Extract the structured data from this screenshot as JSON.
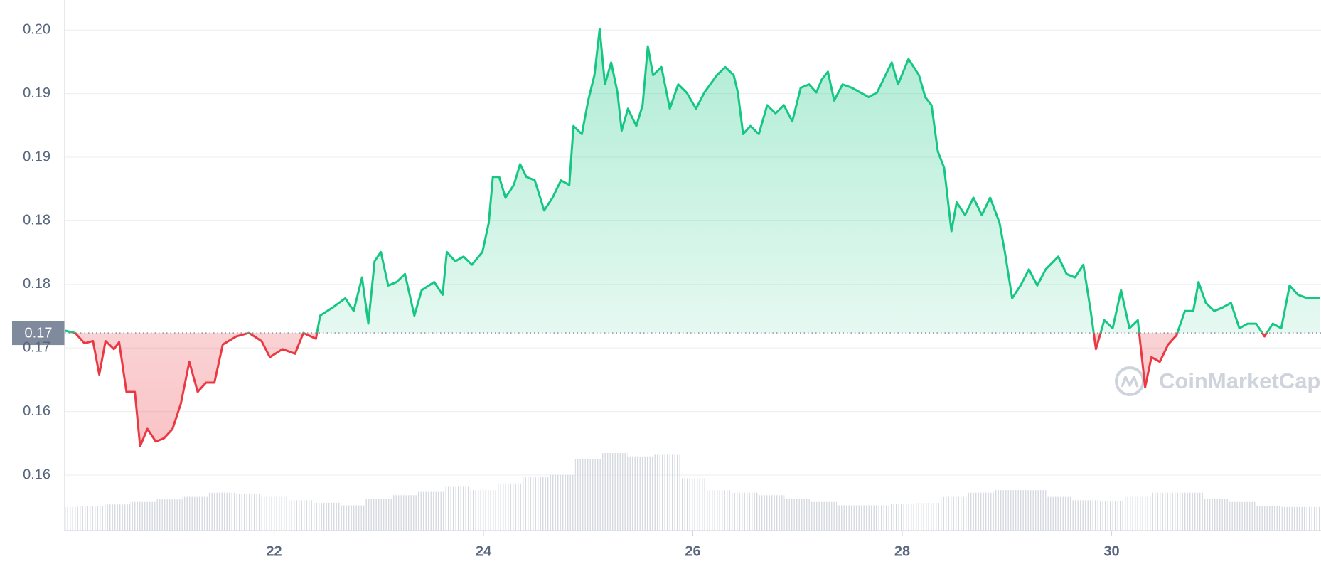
{
  "chart_data": {
    "type": "line",
    "watermark": "CoinMarketCap",
    "xlim": [
      20,
      32
    ],
    "xticks": [
      22,
      24,
      26,
      28,
      30
    ],
    "ylim": [
      0.1542,
      0.2001
    ],
    "yticks": [
      {
        "value": 0.1975,
        "label": "0.20"
      },
      {
        "value": 0.192,
        "label": "0.19"
      },
      {
        "value": 0.1865,
        "label": "0.19"
      },
      {
        "value": 0.181,
        "label": "0.18"
      },
      {
        "value": 0.1755,
        "label": "0.18"
      },
      {
        "value": 0.17,
        "label": "0.17"
      },
      {
        "value": 0.1645,
        "label": "0.16"
      },
      {
        "value": 0.159,
        "label": "0.16"
      }
    ],
    "grid": true,
    "reference_line": {
      "value": 0.1713,
      "label": "0.17"
    },
    "up_color": "#16c784",
    "down_color": "#ea3943",
    "x": [
      20.0,
      20.1,
      20.19,
      20.27,
      20.33,
      20.39,
      20.47,
      20.52,
      20.59,
      20.67,
      20.72,
      20.79,
      20.87,
      20.95,
      21.03,
      21.11,
      21.19,
      21.27,
      21.35,
      21.43,
      21.51,
      21.64,
      21.76,
      21.88,
      21.96,
      22.08,
      22.2,
      22.28,
      22.4,
      22.44,
      22.56,
      22.68,
      22.76,
      22.84,
      22.9,
      22.96,
      23.02,
      23.09,
      23.17,
      23.25,
      23.34,
      23.41,
      23.53,
      23.61,
      23.65,
      23.73,
      23.81,
      23.89,
      23.99,
      24.05,
      24.09,
      24.15,
      24.21,
      24.29,
      24.35,
      24.41,
      24.49,
      24.58,
      24.66,
      24.74,
      24.82,
      24.86,
      24.94,
      25.0,
      25.06,
      25.11,
      25.16,
      25.22,
      25.28,
      25.32,
      25.38,
      25.46,
      25.52,
      25.57,
      25.62,
      25.7,
      25.78,
      25.86,
      25.94,
      26.03,
      26.11,
      26.23,
      26.31,
      26.39,
      26.43,
      26.48,
      26.55,
      26.63,
      26.71,
      26.79,
      26.87,
      26.95,
      27.03,
      27.11,
      27.18,
      27.23,
      27.29,
      27.35,
      27.43,
      27.52,
      27.6,
      27.68,
      27.76,
      27.84,
      27.9,
      27.96,
      28.06,
      28.16,
      28.22,
      28.28,
      28.34,
      28.4,
      28.47,
      28.52,
      28.6,
      28.68,
      28.76,
      28.84,
      28.93,
      28.98,
      29.05,
      29.13,
      29.21,
      29.29,
      29.37,
      29.49,
      29.57,
      29.65,
      29.73,
      29.8,
      29.85,
      29.93,
      30.01,
      30.09,
      30.17,
      30.25,
      30.32,
      30.38,
      30.46,
      30.54,
      30.62,
      30.7,
      30.78,
      30.83,
      30.9,
      30.98,
      31.06,
      31.14,
      31.22,
      31.3,
      31.38,
      31.46,
      31.54,
      31.62,
      31.7,
      31.78,
      31.87,
      31.99
    ],
    "values": [
      0.1715,
      0.1713,
      0.1704,
      0.1706,
      0.1677,
      0.1706,
      0.1699,
      0.1705,
      0.1662,
      0.1662,
      0.1615,
      0.163,
      0.1619,
      0.1622,
      0.163,
      0.1652,
      0.1688,
      0.1662,
      0.167,
      0.167,
      0.1703,
      0.171,
      0.1713,
      0.1706,
      0.1692,
      0.1699,
      0.1695,
      0.1713,
      0.1708,
      0.1728,
      0.1735,
      0.1743,
      0.1732,
      0.1761,
      0.1721,
      0.1775,
      0.1783,
      0.1754,
      0.1757,
      0.1764,
      0.1728,
      0.175,
      0.1757,
      0.1746,
      0.1783,
      0.1775,
      0.1779,
      0.1772,
      0.1783,
      0.1808,
      0.1848,
      0.1848,
      0.183,
      0.1841,
      0.1859,
      0.1848,
      0.1845,
      0.1819,
      0.183,
      0.1845,
      0.1841,
      0.1892,
      0.1885,
      0.1914,
      0.1936,
      0.1976,
      0.1928,
      0.1947,
      0.1921,
      0.1888,
      0.1907,
      0.1892,
      0.191,
      0.1961,
      0.1936,
      0.1943,
      0.1907,
      0.1928,
      0.1921,
      0.1907,
      0.1921,
      0.1936,
      0.1943,
      0.1936,
      0.1921,
      0.1885,
      0.1892,
      0.1885,
      0.191,
      0.1903,
      0.191,
      0.1896,
      0.1925,
      0.1928,
      0.1921,
      0.1932,
      0.1939,
      0.1914,
      0.1928,
      0.1925,
      0.1921,
      0.1917,
      0.1921,
      0.1936,
      0.1947,
      0.1928,
      0.195,
      0.1936,
      0.1917,
      0.191,
      0.187,
      0.1856,
      0.1801,
      0.1826,
      0.1815,
      0.183,
      0.1815,
      0.183,
      0.1808,
      0.1783,
      0.1743,
      0.1754,
      0.1768,
      0.1754,
      0.1768,
      0.1779,
      0.1764,
      0.1761,
      0.1772,
      0.1732,
      0.1699,
      0.1724,
      0.1717,
      0.175,
      0.1717,
      0.1724,
      0.1666,
      0.1692,
      0.1688,
      0.1703,
      0.1711,
      0.1732,
      0.1732,
      0.1757,
      0.1739,
      0.1732,
      0.1735,
      0.1739,
      0.1717,
      0.1721,
      0.1721,
      0.171,
      0.1721,
      0.1717,
      0.1754,
      0.1746,
      0.1743,
      0.1743
    ],
    "volume": {
      "color": "#d5d9e0",
      "ylim": [
        0,
        630
      ],
      "x": [
        20.0,
        20.25,
        20.5,
        20.75,
        21.0,
        21.25,
        21.5,
        21.75,
        22.0,
        22.25,
        22.5,
        22.75,
        23.0,
        23.25,
        23.5,
        23.75,
        24.0,
        24.25,
        24.5,
        24.75,
        25.0,
        25.25,
        25.5,
        25.75,
        26.0,
        26.25,
        26.5,
        26.75,
        27.0,
        27.25,
        27.5,
        27.75,
        28.0,
        28.25,
        28.5,
        28.75,
        29.0,
        29.25,
        29.5,
        29.75,
        30.0,
        30.25,
        30.5,
        30.75,
        31.0,
        31.25,
        31.5,
        31.75,
        32.0
      ],
      "values": [
        28,
        29,
        31,
        34,
        37,
        40,
        45,
        44,
        40,
        36,
        33,
        30,
        38,
        42,
        46,
        52,
        48,
        56,
        64,
        66,
        85,
        92,
        88,
        90,
        62,
        48,
        45,
        42,
        38,
        34,
        30,
        30,
        32,
        33,
        40,
        45,
        48,
        48,
        40,
        36,
        35,
        40,
        45,
        45,
        38,
        34,
        29,
        28,
        28
      ]
    }
  }
}
